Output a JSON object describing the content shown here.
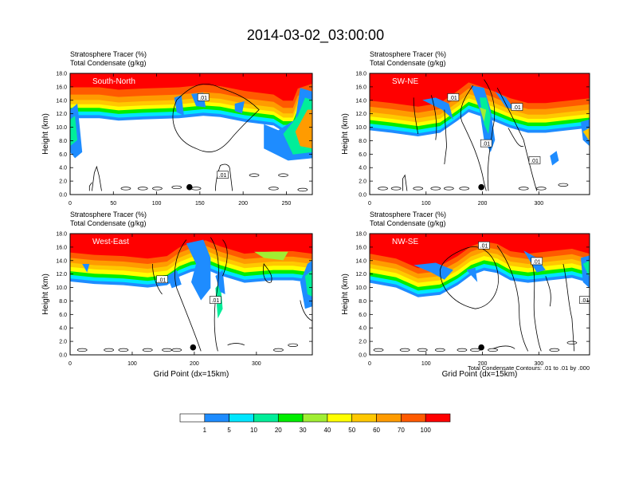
{
  "title": "2014-03-02_03:00:00",
  "colors": {
    "levels": [
      "#ffffff",
      "#1e8cff",
      "#00e6ff",
      "#00ee99",
      "#00ee00",
      "#a0ee32",
      "#ffff00",
      "#ffc800",
      "#ff9b00",
      "#ff5a00",
      "#ff0000"
    ]
  },
  "labels": {
    "tracer": "Stratosphere Tracer   (%)",
    "condensate": "Total Condensate   (g/kg)",
    "ylabel": "Height (km)",
    "xlabel": "Grid Point (dx=15km)",
    "contour_note": "Total Condensate Contours: .01 to .01 by .000",
    "contour_value": ".01"
  },
  "colorbar": {
    "labels": [
      "1",
      "5",
      "10",
      "20",
      "30",
      "40",
      "50",
      "60",
      "70",
      "100"
    ]
  },
  "chart_data": [
    {
      "type": "heatmap",
      "name": "South-North",
      "ylim": [
        0,
        18
      ],
      "yticks": [
        "0.0",
        "2.0",
        "4.0",
        "6.0",
        "8.0",
        "10.0",
        "12.0",
        "14.0",
        "16.0",
        "18.0"
      ],
      "xlim": [
        0,
        280
      ],
      "xticks": [
        0,
        50,
        100,
        150,
        200,
        250
      ],
      "marker": {
        "x": 138,
        "y": 1.1
      }
    },
    {
      "type": "heatmap",
      "name": "SW-NE",
      "ylim": [
        0,
        18
      ],
      "yticks": [
        "0.0",
        "2.0",
        "4.0",
        "6.0",
        "8.0",
        "10.0",
        "12.0",
        "14.0",
        "16.0",
        "18.0"
      ],
      "xlim": [
        0,
        390
      ],
      "xticks": [
        0,
        100,
        200,
        300
      ],
      "marker": {
        "x": 198,
        "y": 1.1
      }
    },
    {
      "type": "heatmap",
      "name": "West-East",
      "ylim": [
        0,
        18
      ],
      "yticks": [
        "0.0",
        "2.0",
        "4.0",
        "6.0",
        "8.0",
        "10.0",
        "12.0",
        "14.0",
        "16.0",
        "18.0"
      ],
      "xlim": [
        0,
        390
      ],
      "xticks": [
        0,
        100,
        200,
        300
      ],
      "marker": {
        "x": 198,
        "y": 1.1
      }
    },
    {
      "type": "heatmap",
      "name": "NW-SE",
      "ylim": [
        0,
        18
      ],
      "yticks": [
        "0.0",
        "2.0",
        "4.0",
        "6.0",
        "8.0",
        "10.0",
        "12.0",
        "14.0",
        "16.0",
        "18.0"
      ],
      "xlim": [
        0,
        390
      ],
      "xticks": [
        0,
        100,
        200,
        300
      ],
      "marker": {
        "x": 198,
        "y": 1.1
      }
    }
  ]
}
